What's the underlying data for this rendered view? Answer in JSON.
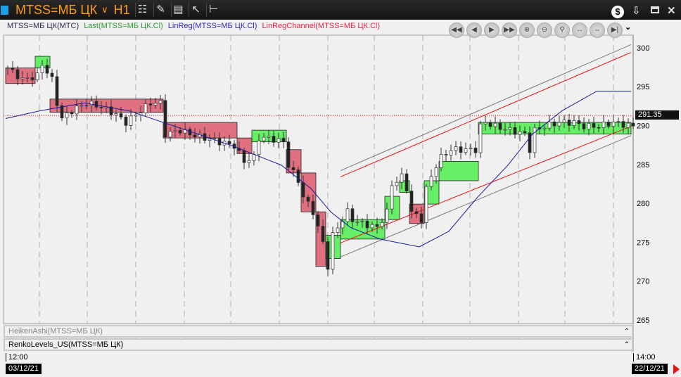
{
  "header": {
    "symbol": "MTSS=МБ ЦК",
    "timeframe": "H1",
    "icons": [
      "candles-icon",
      "pencil-icon",
      "indicator-icon",
      "cursor-icon",
      "levels-icon"
    ],
    "right_icons": [
      "dollar-icon",
      "download-icon",
      "maximize-icon",
      "close-icon"
    ]
  },
  "legend": [
    {
      "text": "MTSS=МБ ЦК(MTC)",
      "color": "#2a2a4a"
    },
    {
      "text": "Last(MTSS=МБ ЦК.Cl)",
      "color": "#2e9a3a"
    },
    {
      "text": "LinReg(MTSS=МБ ЦК.Cl)",
      "color": "#2a2ab0"
    },
    {
      "text": "LinRegChannel(MTSS=МБ ЦК.Cl)",
      "color": "#ee2244"
    }
  ],
  "nav_buttons": [
    "fast-back",
    "back",
    "forward",
    "fast-forward",
    "zoom-in",
    "zoom-out",
    "zoom-fit",
    "compress",
    "expand",
    "end"
  ],
  "panes": [
    {
      "label": "HeikenAshi(MTSS=МБ ЦК)"
    },
    {
      "label": "RenkoLevels_US(MTSS=МБ ЦК)"
    }
  ],
  "time_axis": {
    "start_time": "12:00",
    "end_time": "14:00",
    "start_date": "03/12/21",
    "end_date": "22/12/21"
  },
  "current_price": "291.35",
  "chart_data": {
    "type": "candlestick",
    "ylim": [
      264,
      301.5
    ],
    "yticks": [
      300,
      295,
      290,
      285,
      280,
      275,
      270,
      265
    ],
    "current_price": 291.35,
    "close_path": [
      [
        0,
        297.5
      ],
      [
        3,
        296
      ],
      [
        6,
        296.5
      ],
      [
        7,
        298
      ],
      [
        9,
        296
      ],
      [
        10,
        293
      ],
      [
        11,
        291
      ],
      [
        13,
        292
      ],
      [
        16,
        293
      ],
      [
        19,
        292.5
      ],
      [
        22,
        291.5
      ],
      [
        24,
        290.5
      ],
      [
        26,
        291.5
      ],
      [
        29,
        293
      ],
      [
        31,
        293
      ],
      [
        32,
        289
      ],
      [
        35,
        289.5
      ],
      [
        37,
        289
      ],
      [
        40,
        288.5
      ],
      [
        43,
        288
      ],
      [
        46,
        287.5
      ],
      [
        48,
        285.5
      ],
      [
        50,
        286
      ],
      [
        51,
        288.5
      ],
      [
        53,
        288.5
      ],
      [
        56,
        288
      ],
      [
        57,
        285
      ],
      [
        59,
        283
      ],
      [
        60,
        281
      ],
      [
        62,
        279
      ],
      [
        63,
        277
      ],
      [
        64,
        275
      ],
      [
        65,
        272
      ],
      [
        66,
        276
      ],
      [
        67,
        277
      ],
      [
        69,
        279
      ],
      [
        70,
        278
      ],
      [
        72,
        277.5
      ],
      [
        75,
        277
      ],
      [
        77,
        279
      ],
      [
        78,
        282.5
      ],
      [
        80,
        283.5
      ],
      [
        81,
        282
      ],
      [
        82,
        279
      ],
      [
        84,
        278
      ],
      [
        85,
        282
      ],
      [
        87,
        285
      ],
      [
        88,
        286
      ],
      [
        90,
        287
      ],
      [
        93,
        287
      ],
      [
        95,
        287
      ],
      [
        96,
        290
      ],
      [
        97,
        290.5
      ],
      [
        99,
        290
      ],
      [
        102,
        289.5
      ],
      [
        105,
        289
      ],
      [
        106,
        287
      ],
      [
        107,
        289.5
      ],
      [
        109,
        290
      ],
      [
        112,
        290.5
      ],
      [
        115,
        290.5
      ],
      [
        117,
        290
      ],
      [
        120,
        290
      ],
      [
        123,
        290.5
      ],
      [
        127,
        290
      ]
    ],
    "linreg": [
      [
        0,
        291
      ],
      [
        7,
        292
      ],
      [
        16,
        293
      ],
      [
        25,
        292
      ],
      [
        32,
        290.5
      ],
      [
        39,
        289
      ],
      [
        46,
        287.5
      ],
      [
        56,
        285
      ],
      [
        62,
        282
      ],
      [
        66,
        279
      ],
      [
        70,
        277
      ],
      [
        76,
        275.5
      ],
      [
        84,
        274.5
      ],
      [
        90,
        276.5
      ],
      [
        96,
        281
      ],
      [
        102,
        285
      ],
      [
        107,
        289
      ],
      [
        113,
        292
      ],
      [
        120,
        294.5
      ],
      [
        127,
        294.5
      ]
    ],
    "channel": {
      "start_bar": 68,
      "end_bar": 127,
      "upper_red": [
        283.5,
        299.5
      ],
      "lower_red": [
        275,
        290
      ],
      "upper_gray": [
        284.3,
        300.5
      ],
      "lower_gray": [
        273.2,
        288.8
      ]
    },
    "renko": [
      {
        "from": 0,
        "to": 6,
        "low": 295.5,
        "high": 297.5,
        "dir": "down"
      },
      {
        "from": 6,
        "to": 9,
        "low": 297.5,
        "high": 299,
        "dir": "up"
      },
      {
        "from": 9,
        "to": 32,
        "low": 291.8,
        "high": 293.5,
        "dir": "down"
      },
      {
        "from": 32,
        "to": 47,
        "low": 288.5,
        "high": 290.5,
        "dir": "down"
      },
      {
        "from": 47,
        "to": 50,
        "low": 286.5,
        "high": 288.5,
        "dir": "down"
      },
      {
        "from": 50,
        "to": 57,
        "low": 288,
        "high": 289.5,
        "dir": "up"
      },
      {
        "from": 57,
        "to": 60,
        "low": 284,
        "high": 287,
        "dir": "down"
      },
      {
        "from": 60,
        "to": 63,
        "low": 279,
        "high": 284,
        "dir": "down"
      },
      {
        "from": 63,
        "to": 65,
        "low": 272,
        "high": 279,
        "dir": "down"
      },
      {
        "from": 65,
        "to": 68,
        "low": 273,
        "high": 276,
        "dir": "up"
      },
      {
        "from": 68,
        "to": 77,
        "low": 275.5,
        "high": 278,
        "dir": "up"
      },
      {
        "from": 77,
        "to": 80,
        "low": 278,
        "high": 281,
        "dir": "up"
      },
      {
        "from": 80,
        "to": 82,
        "low": 281.5,
        "high": 283,
        "dir": "up"
      },
      {
        "from": 82,
        "to": 85,
        "low": 277.5,
        "high": 280,
        "dir": "down"
      },
      {
        "from": 85,
        "to": 88,
        "low": 280,
        "high": 283,
        "dir": "up"
      },
      {
        "from": 88,
        "to": 96,
        "low": 283,
        "high": 285.5,
        "dir": "up"
      },
      {
        "from": 96,
        "to": 127,
        "low": 289,
        "high": 290.5,
        "dir": "up"
      }
    ],
    "colors": {
      "up_brick": "#66ee66",
      "down_brick": "#e07080",
      "linreg": "#1a1aa0",
      "channel_red": "#ee1111",
      "channel_gray": "#777777",
      "current_line": "#ee2222"
    },
    "grid": "vertical dashed"
  }
}
